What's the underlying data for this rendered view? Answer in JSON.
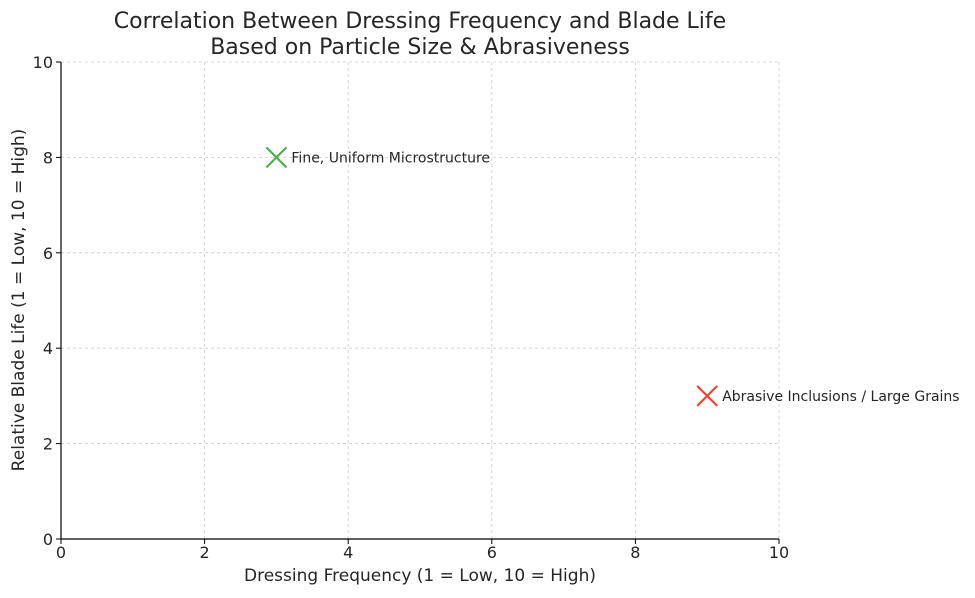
{
  "chart_data": {
    "type": "scatter",
    "title_line1": "Correlation Between Dressing Frequency and Blade Life",
    "title_line2": "Based on Particle Size & Abrasiveness",
    "xlabel": "Dressing Frequency (1 = Low, 10 = High)",
    "ylabel": "Relative Blade Life (1 = Low, 10 = High)",
    "xlim": [
      0,
      10
    ],
    "ylim": [
      0,
      10
    ],
    "xticks": [
      0,
      2,
      4,
      6,
      8,
      10
    ],
    "yticks": [
      0,
      2,
      4,
      6,
      8,
      10
    ],
    "grid": true,
    "points": [
      {
        "x": 3,
        "y": 8,
        "label": "Fine, Uniform Microstructure",
        "color": "#4caf50",
        "marker": "x"
      },
      {
        "x": 9,
        "y": 3,
        "label": "Abrasive Inclusions / Large Grains",
        "color": "#f44336",
        "marker": "x"
      }
    ]
  }
}
